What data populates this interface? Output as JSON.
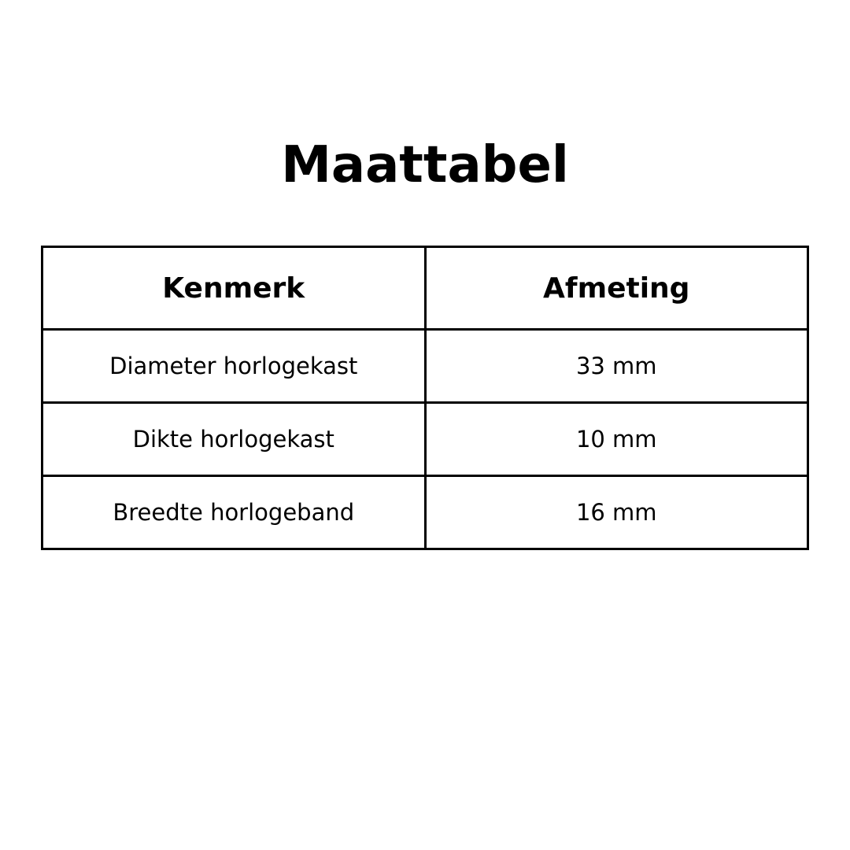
{
  "title": "Maattabel",
  "table": {
    "headers": [
      "Kenmerk",
      "Afmeting"
    ],
    "rows": [
      [
        "Diameter horlogekast",
        "33 mm"
      ],
      [
        "Dikte horlogekast",
        "10 mm"
      ],
      [
        "Breedte horlogeband",
        "16 mm"
      ]
    ]
  }
}
